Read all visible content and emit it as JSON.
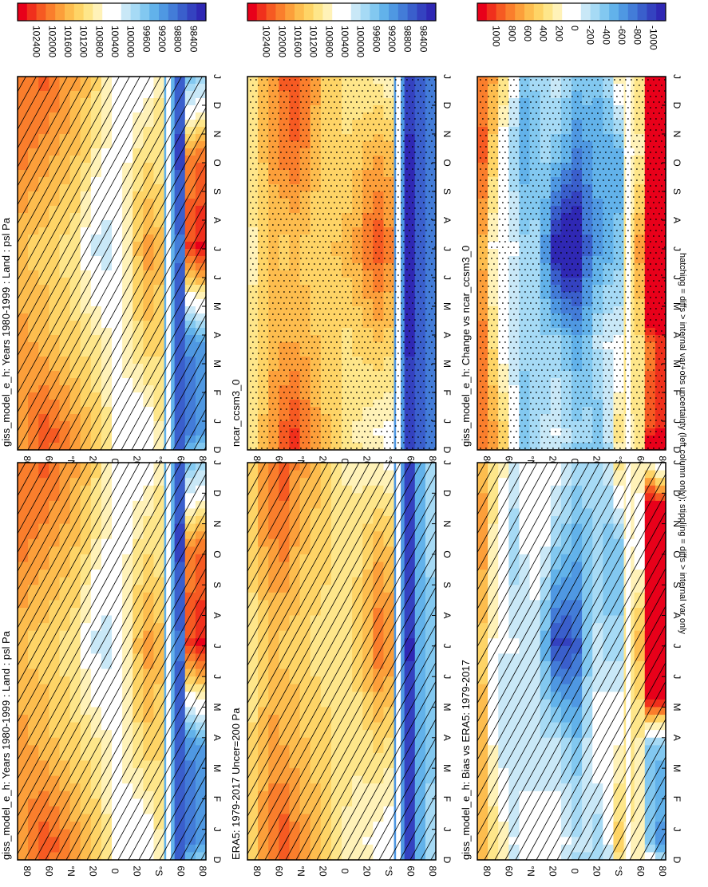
{
  "figure": {
    "footnote": "hatching = diffs > internal var+obs uncertainty (left column only); stippling = diffs > internal var only"
  },
  "common": {
    "month_ticks": [
      "D",
      "J",
      "F",
      "M",
      "A",
      "M",
      "J",
      "J",
      "A",
      "S",
      "O",
      "N",
      "D",
      "J"
    ],
    "lat_ticks": [
      "80",
      "60",
      "°N",
      "20",
      "0",
      "20",
      "°S",
      "60",
      "80"
    ]
  },
  "colorbars": {
    "abs": {
      "labels": [
        "102400",
        "102000",
        "101600",
        "101200",
        "100800",
        "100400",
        "100000",
        "99600",
        "99200",
        "98800",
        "98400"
      ],
      "colors": [
        "#e8001a",
        "#f0301c",
        "#f65a22",
        "#fa7e2c",
        "#fc9f3a",
        "#fdbd4e",
        "#fed466",
        "#fee68a",
        "#fff2b8",
        "#ffffff",
        "#ffffff",
        "#c9e8f7",
        "#a6daf5",
        "#82c8f0",
        "#62b2ea",
        "#4f98e2",
        "#437cd8",
        "#3a5fcc",
        "#3442c0",
        "#2f28b4"
      ]
    },
    "diff": {
      "labels": [
        "1000",
        "800",
        "600",
        "400",
        "200",
        "0",
        "-200",
        "-400",
        "-600",
        "-800",
        "-1000"
      ],
      "colors": [
        "#e8001a",
        "#f0301c",
        "#f65a22",
        "#fa7e2c",
        "#fc9f3a",
        "#fdbd4e",
        "#fed466",
        "#fee68a",
        "#fff2b8",
        "#ffffff",
        "#ffffff",
        "#c9e8f7",
        "#a6daf5",
        "#82c8f0",
        "#62b2ea",
        "#4f98e2",
        "#437cd8",
        "#3a5fcc",
        "#3442c0",
        "#2f28b4"
      ]
    }
  },
  "chart_data": [
    {
      "type": "heatmap",
      "title": "giss_model_e_h: Years 1980-1999 : Land : psl Pa",
      "x": "month (D..J)",
      "y": "latitude 90N..90S",
      "colorbar": "abs",
      "overlay": "hatching",
      "units": "Pa",
      "profile_latitudes": [
        85,
        75,
        65,
        55,
        45,
        35,
        25,
        15,
        5,
        -5,
        -15,
        -25,
        -35,
        -45,
        -55,
        -65,
        -75,
        -85
      ],
      "rows_by_month": {
        "DJF": [
          101700,
          101900,
          102100,
          102000,
          101800,
          101600,
          101400,
          101200,
          100900,
          100600,
          100500,
          100300,
          100400,
          100800,
          99500,
          98800,
          99000,
          99200
        ],
        "MAM": [
          101600,
          101500,
          101400,
          101300,
          101200,
          101100,
          101000,
          100900,
          100700,
          100500,
          100700,
          101000,
          101200,
          101100,
          99500,
          98700,
          99100,
          99300
        ],
        "JJA": [
          101300,
          101200,
          101200,
          101100,
          101000,
          100900,
          100500,
          100100,
          100000,
          100200,
          100800,
          101300,
          101600,
          101400,
          99500,
          98900,
          102200,
          102400
        ],
        "SON": [
          101800,
          101700,
          101600,
          101500,
          101400,
          101300,
          101100,
          100800,
          100600,
          100400,
          100600,
          100900,
          101000,
          100900,
          99400,
          98600,
          101700,
          101900
        ]
      }
    },
    {
      "type": "heatmap",
      "title": "ERA5: 1979-2017 Uncer=200 Pa",
      "colorbar": "abs",
      "overlay": "hatching",
      "units": "Pa",
      "rows_by_month": {
        "DJF": [
          101200,
          101600,
          101900,
          102100,
          101800,
          101600,
          101400,
          101200,
          101000,
          100800,
          100700,
          100600,
          100500,
          100400,
          99300,
          98600,
          99400,
          99800
        ],
        "MAM": [
          101100,
          101400,
          101600,
          101500,
          101400,
          101300,
          101200,
          101100,
          101000,
          100900,
          100900,
          101000,
          101100,
          101000,
          99200,
          98500,
          99500,
          99700
        ],
        "JJA": [
          100900,
          101100,
          101300,
          101200,
          101200,
          101100,
          101000,
          101000,
          100900,
          101000,
          101200,
          101500,
          101900,
          101700,
          99200,
          98400,
          99300,
          99600
        ],
        "SON": [
          101200,
          101500,
          101700,
          101800,
          101500,
          101300,
          101200,
          101100,
          101000,
          100900,
          101000,
          101200,
          101400,
          101300,
          99300,
          98600,
          99400,
          99800
        ]
      }
    },
    {
      "type": "heatmap",
      "title": "giss_model_e_h: Bias vs ERA5: 1979-2017",
      "colorbar": "diff",
      "overlay": "hatching",
      "units": "Pa",
      "rows_by_month": {
        "DJF": [
          500,
          300,
          200,
          -100,
          0,
          0,
          0,
          0,
          -100,
          -200,
          -200,
          -300,
          -100,
          400,
          200,
          200,
          -400,
          -600
        ],
        "MAM": [
          500,
          100,
          -200,
          -200,
          -200,
          -200,
          -200,
          -200,
          -300,
          -400,
          -200,
          0,
          100,
          100,
          300,
          200,
          -400,
          -400
        ],
        "JJA": [
          400,
          100,
          -100,
          -100,
          -200,
          -200,
          -500,
          -900,
          -900,
          -800,
          -400,
          -200,
          -300,
          -300,
          300,
          500,
          2900,
          2800
        ],
        "SON": [
          600,
          200,
          -100,
          -300,
          -100,
          0,
          -100,
          -300,
          -400,
          -500,
          -400,
          -300,
          -400,
          -400,
          100,
          0,
          2300,
          2100
        ]
      }
    },
    {
      "type": "heatmap",
      "title": "ncar_ccsm3_0",
      "colorbar": "abs",
      "overlay": "stippling",
      "units": "Pa",
      "rows_by_month": {
        "DJF": [
          101000,
          101300,
          101700,
          102000,
          102200,
          101900,
          101600,
          101300,
          101100,
          100900,
          100800,
          100700,
          100600,
          100500,
          99300,
          98500,
          98700,
          98900
        ],
        "MAM": [
          100900,
          101200,
          101400,
          101500,
          101500,
          101400,
          101300,
          101200,
          101100,
          101000,
          101100,
          101200,
          101300,
          101200,
          99200,
          98400,
          98700,
          98900
        ],
        "JJA": [
          100800,
          101100,
          101300,
          101200,
          101300,
          101200,
          101100,
          101200,
          101300,
          101400,
          101600,
          101900,
          102100,
          101800,
          99200,
          98300,
          98700,
          98900
        ],
        "SON": [
          101000,
          101300,
          101600,
          101800,
          101900,
          101700,
          101400,
          101200,
          101100,
          101100,
          101200,
          101400,
          101500,
          101400,
          99300,
          98400,
          98700,
          98900
        ]
      }
    },
    {
      "type": "heatmap",
      "title": "giss_model_e_h: Change vs ncar_ccsm3_0",
      "colorbar": "diff",
      "overlay": "stippling",
      "units": "Pa",
      "rows_by_month": {
        "DJF": [
          700,
          600,
          400,
          0,
          -400,
          -300,
          -200,
          -100,
          -200,
          -300,
          -300,
          -400,
          -200,
          300,
          200,
          300,
          900,
          1000
        ],
        "MAM": [
          700,
          300,
          0,
          -200,
          -300,
          -300,
          -300,
          -300,
          -400,
          -500,
          -400,
          -200,
          -100,
          -100,
          300,
          300,
          700,
          900
        ],
        "JJA": [
          500,
          100,
          -100,
          -100,
          -300,
          -300,
          -600,
          -1100,
          -1300,
          -1200,
          -800,
          -600,
          -500,
          -400,
          300,
          600,
          3500,
          3500
        ],
        "SON": [
          800,
          400,
          0,
          -300,
          -500,
          -400,
          -300,
          -400,
          -500,
          -700,
          -600,
          -500,
          -500,
          -500,
          100,
          200,
          3000,
          3000
        ]
      }
    }
  ]
}
